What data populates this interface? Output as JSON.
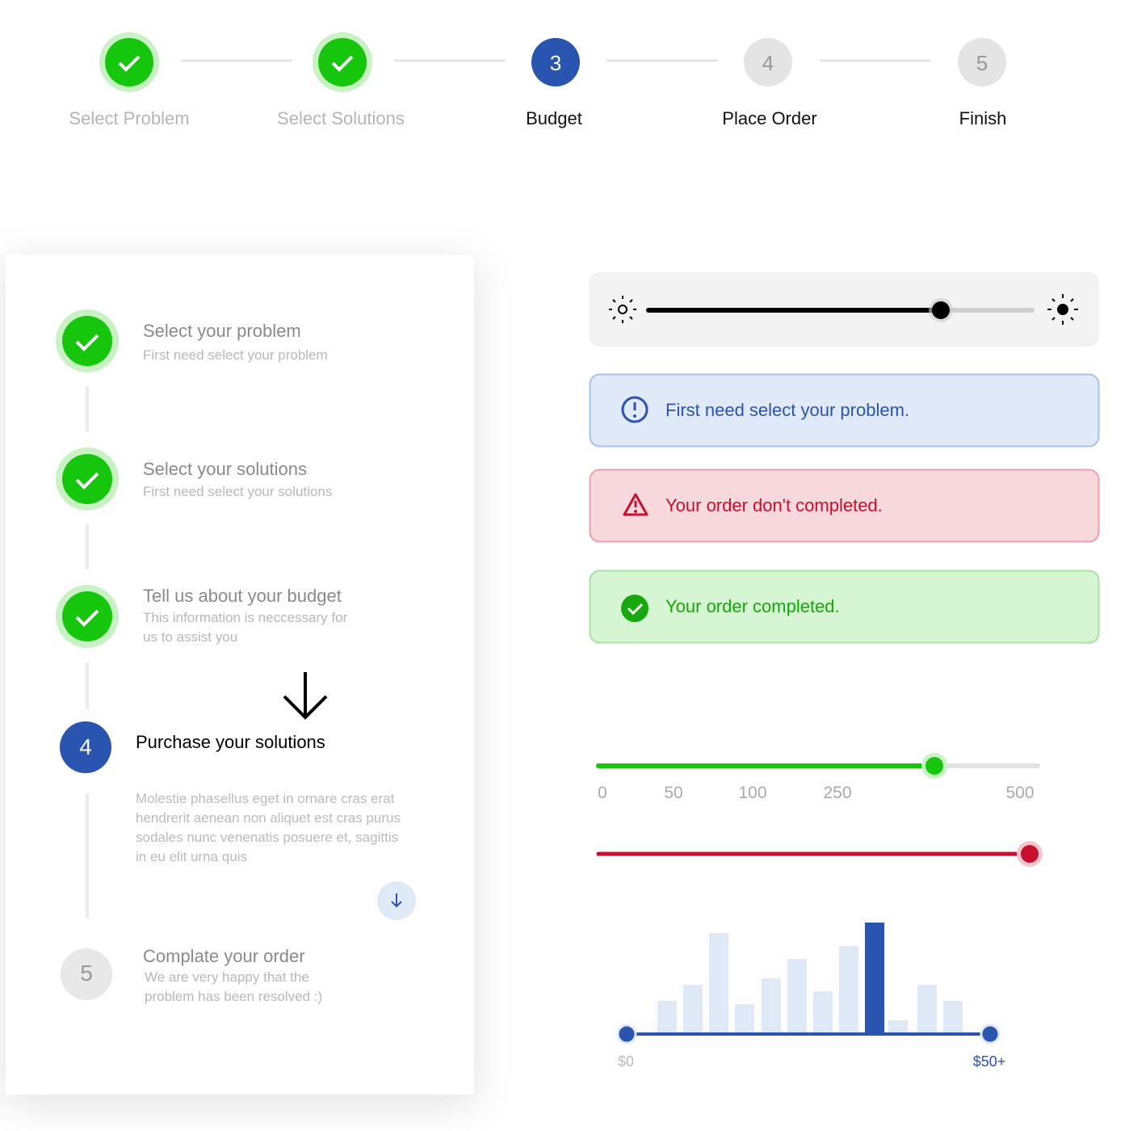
{
  "stepper": {
    "steps": [
      {
        "label": "Select Problem"
      },
      {
        "label": "Select Solutions"
      },
      {
        "number": "3",
        "label": "Budget"
      },
      {
        "number": "4",
        "label": "Place Order"
      },
      {
        "number": "5",
        "label": "Finish"
      }
    ]
  },
  "vertical_steps": [
    {
      "title": "Select your problem",
      "description": "First need select your problem"
    },
    {
      "title": "Select your solutions",
      "description": "First need select your solutions"
    },
    {
      "title": "Tell us about your budget",
      "description": "This information is neccessary for us to assist you"
    },
    {
      "number": "4",
      "title": "Purchase your solutions",
      "description": "Molestie phasellus eget in ornare cras erat hendrerit aenean non aliquet est cras purus sodales nunc venenatis posuere et, sagittis in eu elit urna quis"
    },
    {
      "number": "5",
      "title": "Complate your order",
      "description": "We are very happy that the problem has been resolved :)"
    }
  ],
  "alerts": {
    "info": "First need select your problem.",
    "error": "Your order don't completed.",
    "success": "Your order completed."
  },
  "slider_ticks": [
    0,
    50,
    100,
    250,
    500
  ],
  "range": {
    "min_label": "$0",
    "max_label": "$50+"
  }
}
